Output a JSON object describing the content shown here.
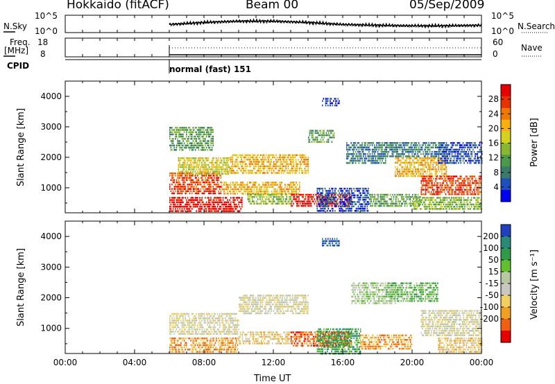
{
  "header": {
    "title_left": "Hokkaido (fitACF)",
    "title_center": "Beam 00",
    "title_right": "05/Sep/2009"
  },
  "noise_panel": {
    "left_label": "N.Sky",
    "right_label": "N.Search",
    "left_ticks": [
      "10^5",
      "10^0"
    ],
    "right_ticks": [
      "10^5",
      "10^0"
    ]
  },
  "freq_panel": {
    "left_label_top": "Freq.",
    "left_label_bottom": "[MHz]",
    "left_ticks": [
      "18",
      "8"
    ],
    "right_label": "Nave",
    "right_ticks": [
      "60",
      "0"
    ]
  },
  "cpid": {
    "label": "CPID",
    "value": "normal (fast) 151"
  },
  "chart_data": [
    {
      "type": "heatmap",
      "title": "",
      "xlabel": "",
      "ylabel": "Slant Range [km]",
      "x_ticks": [
        "00:00",
        "04:00",
        "08:00",
        "12:00",
        "16:00",
        "20:00",
        "00:00"
      ],
      "y_ticks": [
        "1000",
        "2000",
        "3000",
        "4000"
      ],
      "xlim": [
        0,
        24
      ],
      "ylim": [
        180,
        4500
      ],
      "data_start_hour": 6,
      "colorbar": {
        "label": "Power [dB]",
        "ticks": [
          "4",
          "8",
          "12",
          "16",
          "20",
          "24",
          "28"
        ],
        "colors": [
          "#0000f0",
          "#1e4fc0",
          "#3a7a6a",
          "#4a9a4a",
          "#88b830",
          "#d8d020",
          "#f8b010",
          "#f07800",
          "#e83000",
          "#e80000"
        ]
      },
      "regions": [
        {
          "t0": 6.0,
          "t1": 10.2,
          "r0": 230,
          "r1": 700,
          "level": 9
        },
        {
          "t0": 6.0,
          "t1": 9.0,
          "r0": 800,
          "r1": 1500,
          "level": 8
        },
        {
          "t0": 9.0,
          "t1": 13.5,
          "r0": 800,
          "r1": 1200,
          "level": 6
        },
        {
          "t0": 6.5,
          "t1": 9.5,
          "r0": 1450,
          "r1": 2000,
          "level": 5
        },
        {
          "t0": 9.5,
          "t1": 14.0,
          "r0": 1500,
          "r1": 2100,
          "level": 6
        },
        {
          "t0": 6.0,
          "t1": 8.5,
          "r0": 2200,
          "r1": 3000,
          "level": 3
        },
        {
          "t0": 10.5,
          "t1": 13.0,
          "r0": 450,
          "r1": 800,
          "level": 4
        },
        {
          "t0": 13.0,
          "t1": 16.5,
          "r0": 400,
          "r1": 800,
          "level": 9
        },
        {
          "t0": 14.5,
          "t1": 17.5,
          "r0": 200,
          "r1": 1000,
          "level": 1
        },
        {
          "t0": 14.8,
          "t1": 15.8,
          "r0": 3700,
          "r1": 3950,
          "level": 1
        },
        {
          "t0": 14.0,
          "t1": 15.5,
          "r0": 2500,
          "r1": 2900,
          "level": 3
        },
        {
          "t0": 16.2,
          "t1": 18.5,
          "r0": 1800,
          "r1": 2500,
          "level": 2
        },
        {
          "t0": 17.5,
          "t1": 20.5,
          "r0": 400,
          "r1": 800,
          "level": 3
        },
        {
          "t0": 18.5,
          "t1": 22.0,
          "r0": 2000,
          "r1": 2500,
          "level": 2
        },
        {
          "t0": 19.0,
          "t1": 22.0,
          "r0": 1400,
          "r1": 2000,
          "level": 6
        },
        {
          "t0": 20.5,
          "t1": 24.0,
          "r0": 800,
          "r1": 1400,
          "level": 8
        },
        {
          "t0": 20.0,
          "t1": 24.0,
          "r0": 300,
          "r1": 700,
          "level": 4
        },
        {
          "t0": 21.5,
          "t1": 24.0,
          "r0": 1800,
          "r1": 2500,
          "level": 1
        }
      ]
    },
    {
      "type": "heatmap",
      "title": "",
      "xlabel": "Time UT",
      "ylabel": "Slant Range [km]",
      "x_ticks": [
        "00:00",
        "04:00",
        "08:00",
        "12:00",
        "16:00",
        "20:00",
        "00:00"
      ],
      "y_ticks": [
        "1000",
        "2000",
        "3000",
        "4000"
      ],
      "xlim": [
        0,
        24
      ],
      "ylim": [
        180,
        4500
      ],
      "data_start_hour": 6,
      "colorbar": {
        "label": "Velocity [m s⁻¹]",
        "ticks": [
          "200",
          "100",
          "50",
          "15",
          "-15",
          "-50",
          "-100",
          "-200"
        ],
        "colors": [
          "#2040c0",
          "#2a8a7a",
          "#2e9a4a",
          "#60c030",
          "#b8c8a0",
          "#c8c8c0",
          "#f0d060",
          "#f0a020",
          "#f06010",
          "#e80000"
        ]
      },
      "regions": [
        {
          "t0": 6.0,
          "t1": 10.0,
          "r0": 800,
          "r1": 1500,
          "level": 5
        },
        {
          "t0": 10.0,
          "t1": 14.0,
          "r0": 1500,
          "r1": 2100,
          "level": 5
        },
        {
          "t0": 6.0,
          "t1": 10.0,
          "r0": 200,
          "r1": 700,
          "level": 7
        },
        {
          "t0": 10.0,
          "t1": 13.0,
          "r0": 500,
          "r1": 900,
          "level": 6
        },
        {
          "t0": 13.0,
          "t1": 16.5,
          "r0": 400,
          "r1": 900,
          "level": 8
        },
        {
          "t0": 14.5,
          "t1": 17.0,
          "r0": 200,
          "r1": 1000,
          "level": 2
        },
        {
          "t0": 14.8,
          "t1": 15.8,
          "r0": 3700,
          "r1": 3950,
          "level": 0
        },
        {
          "t0": 16.5,
          "t1": 19.0,
          "r0": 1800,
          "r1": 2500,
          "level": 4
        },
        {
          "t0": 18.5,
          "t1": 21.5,
          "r0": 1900,
          "r1": 2500,
          "level": 3
        },
        {
          "t0": 20.5,
          "t1": 24.0,
          "r0": 800,
          "r1": 1600,
          "level": 5
        },
        {
          "t0": 17.0,
          "t1": 20.0,
          "r0": 300,
          "r1": 800,
          "level": 7
        },
        {
          "t0": 21.5,
          "t1": 24.0,
          "r0": 200,
          "r1": 700,
          "level": 6
        }
      ]
    }
  ]
}
